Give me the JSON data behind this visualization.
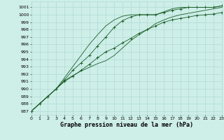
{
  "title": "Graphe pression niveau de la mer (hPa)",
  "bg_color": "#ceeee8",
  "grid_color": "#a8d8d0",
  "line_color": "#1a5e28",
  "x": [
    0,
    1,
    2,
    3,
    4,
    5,
    6,
    7,
    8,
    9,
    10,
    11,
    12,
    13,
    14,
    15,
    16,
    17,
    18,
    19,
    20,
    21,
    22,
    23
  ],
  "yticks": [
    987,
    988,
    989,
    990,
    991,
    992,
    993,
    994,
    995,
    996,
    997,
    998,
    999,
    1000,
    1001
  ],
  "ylim": [
    986.5,
    1001.8
  ],
  "xlim": [
    0,
    23
  ],
  "line1_y": [
    987.0,
    988.0,
    989.0,
    990.0,
    991.0,
    991.7,
    992.5,
    993.3,
    994.2,
    995.0,
    995.5,
    996.2,
    996.8,
    997.5,
    998.0,
    998.5,
    999.0,
    999.3,
    999.5,
    999.7,
    999.9,
    1000.0,
    1000.1,
    1000.3
  ],
  "line2_y": [
    987.0,
    988.0,
    989.0,
    990.0,
    991.1,
    991.8,
    992.4,
    992.9,
    993.4,
    993.8,
    994.5,
    995.5,
    996.5,
    997.3,
    998.0,
    998.8,
    999.3,
    999.7,
    1000.0,
    1000.2,
    1000.4,
    1000.6,
    1000.8,
    1001.0
  ],
  "line3_y": [
    987.0,
    988.0,
    989.0,
    990.0,
    991.2,
    992.5,
    993.5,
    994.5,
    995.8,
    997.0,
    998.3,
    999.2,
    999.7,
    1000.0,
    1000.0,
    1000.0,
    1000.3,
    1000.6,
    1000.8,
    1001.0,
    1001.0,
    1001.0,
    1001.0,
    1001.2
  ],
  "line4_y": [
    987.0,
    988.0,
    989.0,
    990.0,
    991.5,
    993.0,
    994.5,
    996.0,
    997.3,
    998.5,
    999.3,
    999.8,
    1000.0,
    1000.0,
    1000.0,
    1000.0,
    1000.4,
    1000.8,
    1001.0,
    1001.0,
    1001.0,
    1001.0,
    1001.0,
    1001.2
  ],
  "title_fontsize": 6.0,
  "tick_fontsize": 4.5
}
